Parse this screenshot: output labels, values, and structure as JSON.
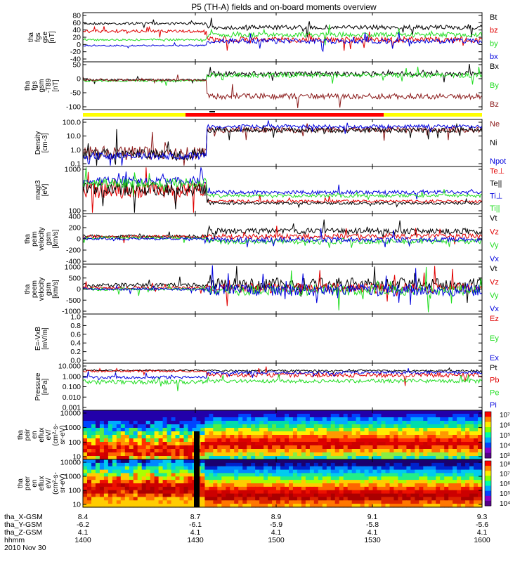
{
  "title": "P5 (TH-A) fields and on-board moments overview",
  "colors": {
    "black": "#000000",
    "red": "#e00000",
    "green": "#22dd22",
    "blue": "#0000dd",
    "darkred": "#8b1a1a",
    "yellow": "#ffff00",
    "barred": "#ff0000"
  },
  "chart_data": {
    "type": "line",
    "x_tick_labels": [
      "8.4",
      "8.7",
      "8.9",
      "9.1",
      "9.3"
    ],
    "ephemeris": [
      {
        "label": "tha_X-GSM",
        "values": [
          "8.4",
          "8.7",
          "8.9",
          "9.1",
          "9.3"
        ]
      },
      {
        "label": "tha_Y-GSM",
        "values": [
          "-6.2",
          "-6.1",
          "-5.9",
          "-5.8",
          "-5.6"
        ]
      },
      {
        "label": "tha_Z-GSM",
        "values": [
          "4.1",
          "4.1",
          "4.1",
          "4.1",
          "4.1"
        ]
      },
      {
        "label": "hhmm",
        "values": [
          "1400",
          "1430",
          "1500",
          "1530",
          "1600"
        ]
      }
    ],
    "date_label": "2010 Nov 30",
    "time_range": [
      1400,
      1600
    ],
    "panels": [
      {
        "key": "fgs",
        "ylabel": [
          "tha",
          "fgs",
          "gse",
          "[nT]"
        ],
        "yticks": [
          "80",
          "60",
          "40",
          "20",
          "0",
          "-20",
          "-40"
        ],
        "ylim": [
          -40,
          80
        ],
        "series": [
          {
            "name": "Bt",
            "color": "black"
          },
          {
            "name": "bz",
            "color": "red"
          },
          {
            "name": "by",
            "color": "green"
          },
          {
            "name": "bx",
            "color": "blue"
          }
        ]
      },
      {
        "key": "fgs_t89",
        "ylabel": [
          "tha",
          "fgs",
          "gsm",
          "-T89",
          "[nT]"
        ],
        "yticks": [
          "50",
          "0",
          "-50",
          "-100"
        ],
        "ylim": [
          -120,
          60
        ],
        "series": [
          {
            "name": "Bx",
            "color": "black"
          },
          {
            "name": "By",
            "color": "green"
          },
          {
            "name": "Bz",
            "color": "darkred"
          }
        ]
      },
      {
        "key": "density",
        "ylabel": [
          "Density",
          "[cm-3]"
        ],
        "yticks": [
          "100.0",
          "10.0",
          "1.0",
          "0.1"
        ],
        "ylim": [
          0.1,
          100
        ],
        "log": true,
        "series": [
          {
            "name": "Ne",
            "color": "darkred"
          },
          {
            "name": "Ni",
            "color": "black"
          },
          {
            "name": "Npot",
            "color": "blue"
          }
        ]
      },
      {
        "key": "temp",
        "ylabel": [
          "magt3",
          "[eV]"
        ],
        "yticks": [
          "1000",
          "100"
        ],
        "ylim": [
          30,
          10000
        ],
        "log": true,
        "series": [
          {
            "name": "Te⊥",
            "color": "red"
          },
          {
            "name": "Te||",
            "color": "black"
          },
          {
            "name": "Ti⊥",
            "color": "blue"
          },
          {
            "name": "Ti||",
            "color": "green"
          }
        ]
      },
      {
        "key": "peim_vel",
        "ylabel": [
          "tha",
          "peim",
          "velocity",
          "gsm",
          "[km/s]"
        ],
        "yticks": [
          "400",
          "200",
          "0",
          "-200",
          "-400"
        ],
        "ylim": [
          -400,
          400
        ],
        "series": [
          {
            "name": "Vt",
            "color": "black"
          },
          {
            "name": "Vz",
            "color": "red"
          },
          {
            "name": "Vy",
            "color": "green"
          },
          {
            "name": "Vx",
            "color": "blue"
          }
        ]
      },
      {
        "key": "peem_vel",
        "ylabel": [
          "tha",
          "peem",
          "velocity",
          "gsm",
          "[km/s]"
        ],
        "yticks": [
          "1000",
          "500",
          "0",
          "-500",
          "-1000"
        ],
        "ylim": [
          -1000,
          1000
        ],
        "series": [
          {
            "name": "Vt",
            "color": "black"
          },
          {
            "name": "Vz",
            "color": "red"
          },
          {
            "name": "Vy",
            "color": "green"
          },
          {
            "name": "Vx",
            "color": "blue"
          }
        ]
      },
      {
        "key": "efield",
        "ylabel": [
          "E=-VxB",
          "[mV/m]"
        ],
        "yticks": [
          "1.0",
          "0.8",
          "0.6",
          "0.4",
          "0.2",
          "0.0"
        ],
        "ylim": [
          0,
          1
        ],
        "series": [
          {
            "name": "Ez",
            "color": "red"
          },
          {
            "name": "Ey",
            "color": "green"
          },
          {
            "name": "Ex",
            "color": "blue"
          }
        ]
      },
      {
        "key": "pressure",
        "ylabel": [
          "Pressure",
          "[nPa]"
        ],
        "yticks": [
          "10.000",
          "1.000",
          "0.100",
          "0.010",
          "0.001"
        ],
        "ylim": [
          0.001,
          10
        ],
        "log": true,
        "series": [
          {
            "name": "Pt",
            "color": "black"
          },
          {
            "name": "Pb",
            "color": "red"
          },
          {
            "name": "Pe",
            "color": "green"
          },
          {
            "name": "Pi",
            "color": "blue"
          }
        ]
      },
      {
        "key": "peir",
        "ylabel": [
          "tha",
          "peir",
          "en",
          "eflux",
          "eV/",
          "(cm²-s-",
          "sr-eV)"
        ],
        "yticks": [
          "10000",
          "1000",
          "100",
          "10"
        ],
        "type": "spectrogram",
        "colorbar": {
          "ticks": [
            "10⁷",
            "10⁶",
            "10⁵",
            "10⁴",
            "10³"
          ]
        }
      },
      {
        "key": "peer",
        "ylabel": [
          "tha",
          "peer",
          "en",
          "eflux",
          "eV/",
          "(cm²-s-",
          "sr-eV)"
        ],
        "yticks": [
          "10000",
          "1000",
          "100",
          "10"
        ],
        "type": "spectrogram",
        "colorbar": {
          "ticks": [
            "10⁸",
            "10⁷",
            "10⁶",
            "10⁵",
            "10⁴"
          ]
        }
      }
    ]
  }
}
